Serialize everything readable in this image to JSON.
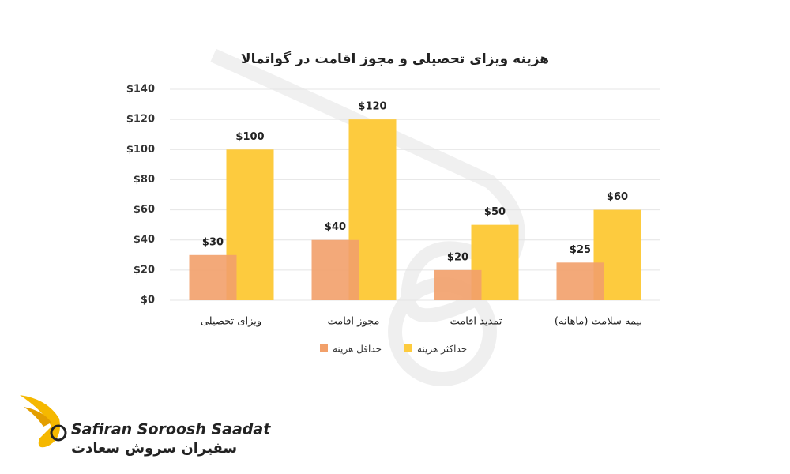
{
  "chart_data": {
    "type": "bar",
    "title": "هزینه ویزای تحصیلی و مجوز اقامت در گواتمالا",
    "categories": [
      "ویزای تحصیلی",
      "مجوز اقامت",
      "تمدید اقامت",
      "بیمه سلامت (ماهانه)"
    ],
    "series": [
      {
        "name": "حداقل هزینه",
        "color": "#f2a06a",
        "values": [
          30,
          40,
          20,
          25
        ],
        "value_labels": [
          "$30",
          "$40",
          "$20",
          "$25"
        ]
      },
      {
        "name": "حداکثر هزینه",
        "color": "#fdcb3e",
        "values": [
          100,
          120,
          50,
          60
        ],
        "value_labels": [
          "$100",
          "$120",
          "$50",
          "$60"
        ]
      }
    ],
    "ylim": [
      0,
      140
    ],
    "yticks": [
      {
        "value": 0,
        "label": "$0"
      },
      {
        "value": 20,
        "label": "$20"
      },
      {
        "value": 40,
        "label": "$40"
      },
      {
        "value": 60,
        "label": "$60"
      },
      {
        "value": 80,
        "label": "$80"
      },
      {
        "value": 100,
        "label": "$100"
      },
      {
        "value": 120,
        "label": "$120"
      },
      {
        "value": 140,
        "label": "$140"
      }
    ],
    "grid": true,
    "legend": "bottom"
  },
  "brand": {
    "name": "Safiran Soroosh Saadat",
    "name_fa": "سفیران سروش سعادت"
  }
}
